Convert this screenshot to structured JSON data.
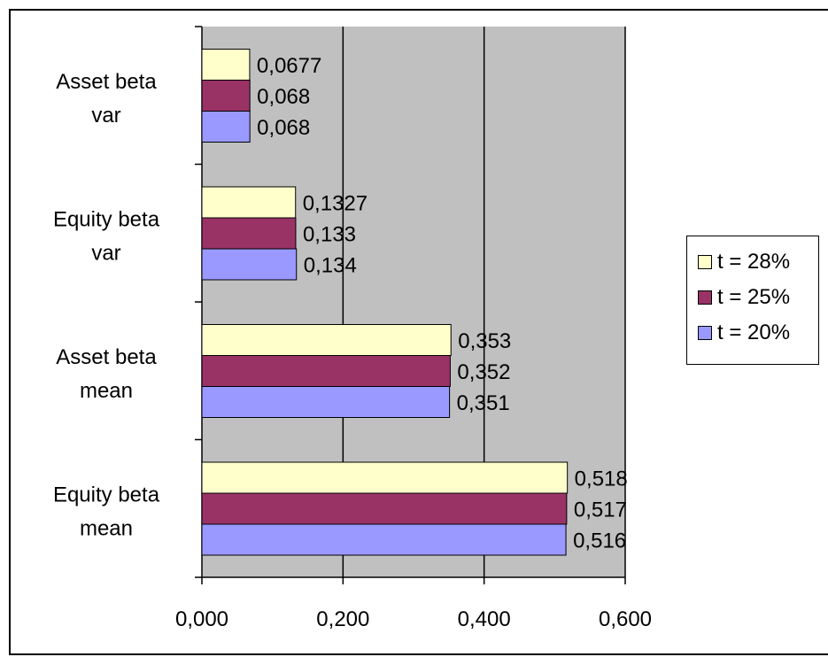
{
  "chart_data": {
    "type": "bar",
    "orientation": "horizontal",
    "categories": [
      "Equity beta mean",
      "Asset beta mean",
      "Equity beta var",
      "Asset beta var"
    ],
    "category_lines": [
      [
        "Equity beta",
        "mean"
      ],
      [
        "Asset beta",
        "mean"
      ],
      [
        "Equity beta",
        "var"
      ],
      [
        "Asset beta",
        "var"
      ]
    ],
    "series": [
      {
        "name": "t = 20%",
        "color": "#9999ff",
        "values": [
          0.516,
          0.351,
          0.134,
          0.068
        ],
        "labels": [
          "0,516",
          "0,351",
          "0,134",
          "0,068"
        ]
      },
      {
        "name": "t = 25%",
        "color": "#993366",
        "values": [
          0.517,
          0.352,
          0.133,
          0.068
        ],
        "labels": [
          "0,517",
          "0,352",
          "0,133",
          "0,068"
        ]
      },
      {
        "name": "t = 28%",
        "color": "#ffffcc",
        "values": [
          0.518,
          0.353,
          0.1327,
          0.0677
        ],
        "labels": [
          "0,518",
          "0,353",
          "0,1327",
          "0,0677"
        ]
      }
    ],
    "xlim": [
      0,
      0.6
    ],
    "xticks": [
      0,
      0.2,
      0.4,
      0.6
    ],
    "xtick_labels": [
      "0,000",
      "0,200",
      "0,400",
      "0,600"
    ],
    "plot_background": "#c0c0c0",
    "grid": true,
    "legend_position": "right",
    "title": "",
    "xlabel": "",
    "ylabel": ""
  }
}
